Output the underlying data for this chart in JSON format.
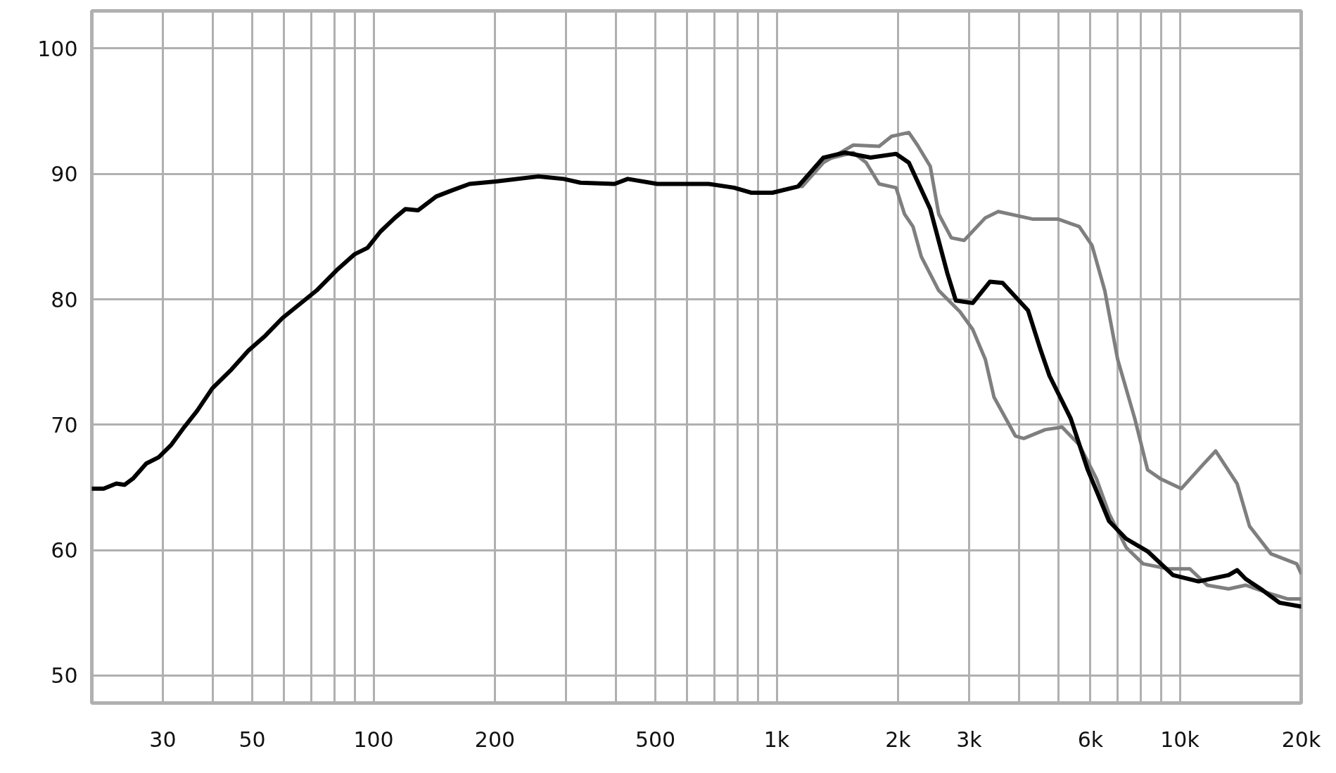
{
  "chart_data": {
    "type": "line",
    "log": "x",
    "grid": true,
    "line_style": "solid",
    "marker": "none",
    "xlim": [
      20,
      20000
    ],
    "ylim": [
      47.8,
      103
    ],
    "xticks": [
      {
        "value": 20,
        "label": null
      },
      30,
      {
        "value": 40,
        "label": null
      },
      50,
      {
        "value": 60,
        "label": null
      },
      {
        "value": 70,
        "label": null
      },
      {
        "value": 80,
        "label": null
      },
      {
        "value": 90,
        "label": null
      },
      100,
      200,
      {
        "value": 300,
        "label": null
      },
      {
        "value": 400,
        "label": null
      },
      500,
      {
        "value": 600,
        "label": null
      },
      {
        "value": 700,
        "label": null
      },
      {
        "value": 800,
        "label": null
      },
      {
        "value": 900,
        "label": null
      },
      {
        "value": 1000,
        "label": "1k"
      },
      {
        "value": 2000,
        "label": "2k"
      },
      {
        "value": 3000,
        "label": "3k"
      },
      {
        "value": 4000,
        "label": null
      },
      {
        "value": 5000,
        "label": null
      },
      {
        "value": 6000,
        "label": "6k"
      },
      {
        "value": 7000,
        "label": null
      },
      {
        "value": 8000,
        "label": null
      },
      {
        "value": 9000,
        "label": null
      },
      {
        "value": 10000,
        "label": "10k"
      },
      {
        "value": 20000,
        "label": "20k"
      }
    ],
    "yticks": [
      50,
      60,
      70,
      80,
      90,
      100
    ],
    "series": [
      {
        "color": "#7f7f7f",
        "x": [
          784,
          864,
          976,
          1130,
          1157,
          1306,
          1549,
          1795,
          1928,
          2127,
          2234,
          2404,
          2523,
          2711,
          2917,
          3293,
          3545,
          4305,
          4984,
          5629,
          6056,
          6513,
          7011,
          7729,
          8318,
          8939,
          10090,
          11400,
          12270,
          13870,
          14890,
          16830,
          19500,
          19950
        ],
        "values": [
          88.9,
          88.5,
          88.5,
          89.0,
          89.0,
          90.9,
          92.3,
          92.2,
          93.0,
          93.3,
          92.3,
          90.6,
          86.8,
          84.9,
          84.7,
          86.5,
          87.0,
          86.4,
          86.4,
          85.8,
          84.3,
          80.7,
          75.2,
          70.5,
          66.4,
          65.7,
          64.9,
          66.8,
          67.9,
          65.3,
          61.9,
          59.7,
          58.9,
          58.2
        ]
      },
      {
        "color": "#7f7f7f",
        "x": [
          784,
          864,
          976,
          1130,
          1306,
          1549,
          1667,
          1795,
          1977,
          2075,
          2178,
          2284,
          2523,
          2849,
          3063,
          3293,
          3459,
          3908,
          4100,
          4634,
          5105,
          5629,
          6209,
          6677,
          7362,
          8110,
          9376,
          10590,
          11690,
          13210,
          14560,
          16830,
          18550,
          19950
        ],
        "values": [
          88.9,
          88.5,
          88.5,
          89.0,
          91.1,
          91.7,
          90.9,
          89.2,
          88.9,
          86.8,
          85.8,
          83.4,
          80.7,
          79.0,
          77.6,
          75.2,
          72.2,
          69.1,
          68.9,
          69.6,
          69.8,
          68.4,
          65.7,
          62.9,
          60.2,
          58.9,
          58.5,
          58.5,
          57.2,
          56.9,
          57.2,
          56.5,
          56.1,
          56.1
        ]
      },
      {
        "color": "#000000",
        "x": [
          20.0,
          21.4,
          23.0,
          24.1,
          25.3,
          27.3,
          29.3,
          31.5,
          33.9,
          36.5,
          39.8,
          44.4,
          48.9,
          53.9,
          59.4,
          72.2,
          81.5,
          89.8,
          96.6,
          104,
          113,
          120,
          129,
          143,
          157,
          173,
          201,
          256,
          296,
          326,
          396,
          427,
          506,
          678,
          784,
          864,
          976,
          1130,
          1306,
          1476,
          1709,
          1977,
          2127,
          2404,
          2649,
          2782,
          3063,
          3379,
          3634,
          4204,
          4521,
          4750,
          5361,
          5910,
          6677,
          7362,
          8318,
          9616,
          11130,
          13210,
          13870,
          14560,
          16040,
          17670,
          19950
        ],
        "values": [
          64.9,
          64.9,
          65.3,
          65.2,
          65.7,
          66.9,
          67.4,
          68.4,
          69.8,
          71.1,
          72.9,
          74.4,
          75.9,
          77.1,
          78.5,
          80.7,
          82.4,
          83.6,
          84.1,
          85.4,
          86.5,
          87.2,
          87.1,
          88.2,
          88.7,
          89.2,
          89.4,
          89.8,
          89.6,
          89.3,
          89.2,
          89.6,
          89.2,
          89.2,
          88.9,
          88.5,
          88.5,
          89.0,
          91.3,
          91.7,
          91.3,
          91.6,
          90.9,
          87.2,
          82.1,
          79.9,
          79.7,
          81.4,
          81.3,
          79.1,
          75.9,
          73.9,
          70.5,
          66.4,
          62.3,
          60.9,
          59.9,
          58.0,
          57.5,
          58.0,
          58.4,
          57.7,
          56.8,
          55.8,
          55.5
        ]
      }
    ]
  }
}
